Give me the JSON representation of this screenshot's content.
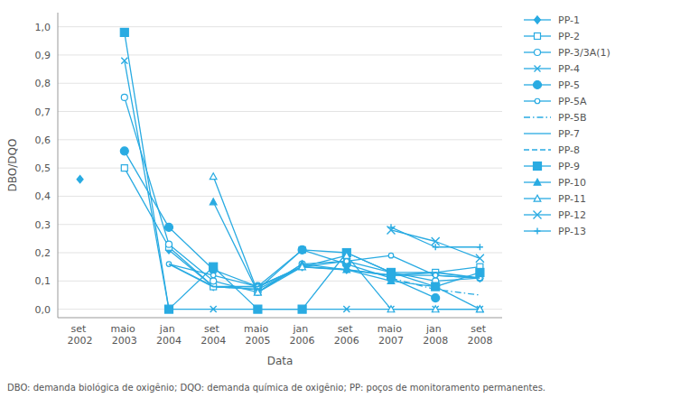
{
  "chart_data": {
    "type": "line",
    "xlabel": "Data",
    "ylabel": "DBO/DQO",
    "footnote": "DBO: demanda biológica de oxigênio; DQO: demanda química de oxigênio; PP: poços de monitoramento permanentes.",
    "color": "#29ABE2",
    "grid": true,
    "legend": "right",
    "ylim": [
      -0.03,
      1.05
    ],
    "yticks": [
      {
        "value": 0.0,
        "label": "0,0"
      },
      {
        "value": 0.1,
        "label": "0,1"
      },
      {
        "value": 0.2,
        "label": "0,2"
      },
      {
        "value": 0.3,
        "label": "0,3"
      },
      {
        "value": 0.4,
        "label": "0,4"
      },
      {
        "value": 0.5,
        "label": "0,5"
      },
      {
        "value": 0.6,
        "label": "0,6"
      },
      {
        "value": 0.7,
        "label": "0,7"
      },
      {
        "value": 0.8,
        "label": "0,8"
      },
      {
        "value": 0.9,
        "label": "0,9"
      },
      {
        "value": 1.0,
        "label": "1,0"
      }
    ],
    "categories": [
      "set 2002",
      "maio 2003",
      "jan 2004",
      "set 2004",
      "maio 2005",
      "jan 2006",
      "set 2006",
      "maio 2007",
      "jan 2008",
      "set 2008"
    ],
    "series": [
      {
        "name": "PP-1",
        "marker": "diamond",
        "line_style": "solid",
        "values": [
          0.46,
          null,
          0.21,
          0.08,
          0.07,
          0.15,
          0.14,
          0.12,
          0.12,
          0.11
        ]
      },
      {
        "name": "PP-2",
        "marker": "square-open",
        "line_style": "solid",
        "values": [
          null,
          0.5,
          0.22,
          0.08,
          0.07,
          0.21,
          0.2,
          0.13,
          0.13,
          0.15
        ]
      },
      {
        "name": "PP-3/3A(1)",
        "marker": "circle-open",
        "line_style": "solid",
        "values": [
          null,
          0.75,
          0.23,
          0.1,
          0.06,
          0.16,
          0.17,
          0.13,
          0.1,
          0.11
        ]
      },
      {
        "name": "PP-4",
        "marker": "x",
        "line_style": "solid",
        "values": [
          null,
          0.88,
          0.0,
          0.0,
          0.0,
          0.0,
          0.0,
          0.0,
          0.0,
          0.0
        ]
      },
      {
        "name": "PP-5",
        "marker": "circle-large",
        "line_style": "solid",
        "values": [
          null,
          0.56,
          0.29,
          0.14,
          0.08,
          0.21,
          0.16,
          0.11,
          0.04,
          null
        ]
      },
      {
        "name": "PP-5A",
        "marker": "circle-open-small",
        "line_style": "solid",
        "values": [
          null,
          null,
          0.16,
          0.12,
          0.08,
          0.15,
          0.17,
          0.19,
          0.12,
          0.11
        ]
      },
      {
        "name": "PP-5B",
        "marker": "none",
        "line_style": "dashdot",
        "values": [
          null,
          null,
          null,
          null,
          null,
          null,
          null,
          0.11,
          0.07,
          0.05
        ]
      },
      {
        "name": "PP-7",
        "marker": "none",
        "line_style": "solid",
        "values": [
          null,
          null,
          0.16,
          0.08,
          0.08,
          0.15,
          0.14,
          0.12,
          0.13,
          0.11
        ]
      },
      {
        "name": "PP-8",
        "marker": "none",
        "line_style": "dashed",
        "values": [
          null,
          null,
          null,
          null,
          null,
          null,
          null,
          null,
          null,
          null
        ]
      },
      {
        "name": "PP-9",
        "marker": "square-large",
        "line_style": "solid",
        "values": [
          null,
          0.98,
          0.0,
          0.15,
          0.0,
          0.0,
          0.2,
          0.13,
          0.08,
          0.13
        ]
      },
      {
        "name": "PP-10",
        "marker": "triangle",
        "line_style": "solid",
        "values": [
          null,
          null,
          null,
          0.38,
          0.06,
          0.16,
          0.14,
          0.1,
          0.08,
          0.0
        ]
      },
      {
        "name": "PP-11",
        "marker": "triangle-open",
        "line_style": "solid",
        "values": [
          null,
          null,
          null,
          0.47,
          0.06,
          0.15,
          0.19,
          0.0,
          0.0,
          0.0
        ]
      },
      {
        "name": "PP-12",
        "marker": "x-large",
        "line_style": "solid",
        "values": [
          null,
          null,
          null,
          null,
          null,
          null,
          null,
          0.28,
          0.24,
          0.18
        ]
      },
      {
        "name": "PP-13",
        "marker": "plus",
        "line_style": "solid",
        "values": [
          null,
          null,
          null,
          null,
          null,
          null,
          null,
          0.29,
          0.22,
          0.22
        ]
      }
    ]
  }
}
